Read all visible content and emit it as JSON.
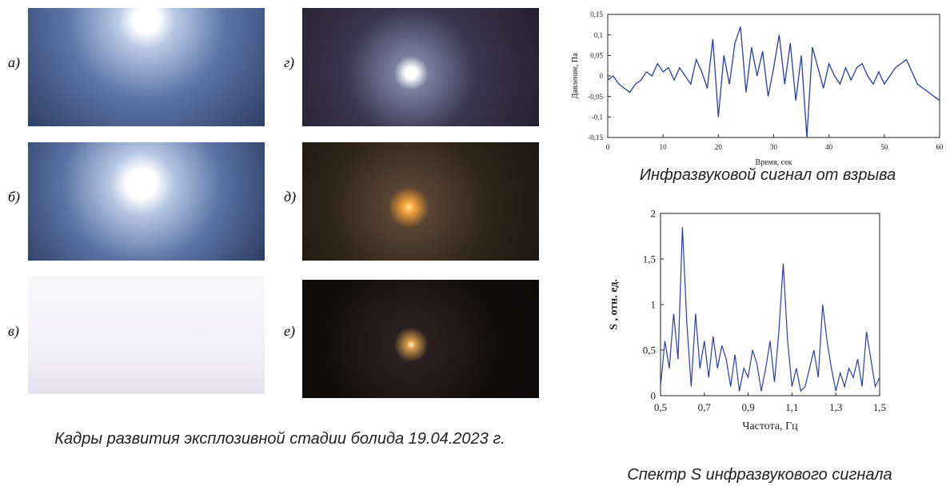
{
  "figure": {
    "panels": [
      {
        "label": "а)"
      },
      {
        "label": "б)"
      },
      {
        "label": "в)"
      },
      {
        "label": "г)"
      },
      {
        "label": "д)"
      },
      {
        "label": "е)"
      }
    ],
    "caption": "Кадры развития эксплозивной стадии болида 19.04.2023 г."
  },
  "chart_data": [
    {
      "type": "line",
      "title": "Инфразвуковой сигнал от взрыва",
      "x_label": "Время, сек",
      "y_label": "Давление, Па",
      "x": [
        0,
        1,
        2,
        3,
        4,
        5,
        6,
        7,
        8,
        9,
        10,
        11,
        12,
        13,
        14,
        15,
        16,
        17,
        18,
        19,
        20,
        21,
        22,
        23,
        24,
        25,
        26,
        27,
        28,
        29,
        30,
        31,
        32,
        33,
        34,
        35,
        36,
        37,
        38,
        39,
        40,
        41,
        42,
        43,
        44,
        45,
        46,
        47,
        48,
        49,
        50,
        51,
        52,
        53,
        54,
        55,
        56,
        57,
        58,
        59,
        60
      ],
      "series": [
        {
          "color": "#2a3f9a",
          "values": [
            -0.01,
            0.0,
            -0.02,
            -0.03,
            -0.04,
            -0.02,
            -0.01,
            0.01,
            0.0,
            0.03,
            0.01,
            0.02,
            -0.01,
            0.02,
            0.0,
            -0.02,
            0.04,
            0.01,
            -0.03,
            0.09,
            -0.1,
            0.05,
            -0.02,
            0.08,
            0.12,
            -0.04,
            0.07,
            0.0,
            0.06,
            -0.05,
            0.02,
            0.1,
            -0.02,
            0.08,
            -0.06,
            0.05,
            -0.15,
            0.07,
            0.02,
            -0.03,
            0.03,
            0.0,
            -0.02,
            0.02,
            -0.01,
            0.02,
            0.03,
            0.0,
            -0.02,
            0.01,
            -0.02,
            0.0,
            0.02,
            0.03,
            0.04,
            0.01,
            -0.02,
            -0.03,
            -0.04,
            -0.05,
            -0.06
          ]
        }
      ],
      "xlim": [
        0,
        60
      ],
      "xticks": [
        0,
        10,
        20,
        30,
        40,
        50,
        60
      ],
      "ylim": [
        -0.15,
        0.15
      ],
      "yticks": [
        {
          "value": -0.15,
          "label": "-0,15"
        },
        {
          "value": -0.1,
          "label": "-0,1"
        },
        {
          "value": -0.05,
          "label": "-0,05"
        },
        0,
        {
          "value": 0.05,
          "label": "0,05"
        },
        {
          "value": 0.1,
          "label": "0,1"
        },
        {
          "value": 0.15,
          "label": "0,15"
        }
      ]
    },
    {
      "type": "line",
      "title": "Спектр S инфразвукового сигнала",
      "x_label": "Частота, Гц",
      "y_label": "S , отн. ед.",
      "x": [
        0.5,
        0.52,
        0.54,
        0.56,
        0.58,
        0.6,
        0.62,
        0.64,
        0.66,
        0.68,
        0.7,
        0.72,
        0.74,
        0.76,
        0.78,
        0.8,
        0.82,
        0.84,
        0.86,
        0.88,
        0.9,
        0.92,
        0.94,
        0.96,
        0.98,
        1.0,
        1.02,
        1.04,
        1.06,
        1.08,
        1.1,
        1.12,
        1.14,
        1.16,
        1.18,
        1.2,
        1.22,
        1.24,
        1.26,
        1.28,
        1.3,
        1.32,
        1.34,
        1.36,
        1.38,
        1.4,
        1.42,
        1.44,
        1.46,
        1.48,
        1.5
      ],
      "series": [
        {
          "color": "#2a3f9a",
          "values": [
            0.1,
            0.6,
            0.3,
            0.9,
            0.4,
            1.85,
            0.8,
            0.1,
            0.9,
            0.3,
            0.6,
            0.2,
            0.65,
            0.3,
            0.55,
            0.4,
            0.1,
            0.45,
            0.05,
            0.3,
            0.2,
            0.5,
            0.35,
            0.05,
            0.3,
            0.6,
            0.15,
            0.7,
            1.45,
            0.6,
            0.1,
            0.3,
            0.05,
            0.1,
            0.3,
            0.5,
            0.2,
            1.0,
            0.6,
            0.3,
            0.05,
            0.25,
            0.1,
            0.3,
            0.2,
            0.4,
            0.1,
            0.7,
            0.4,
            0.1,
            0.2
          ]
        }
      ],
      "xlim": [
        0.5,
        1.5
      ],
      "xticks": [
        {
          "value": 0.5,
          "label": "0,5"
        },
        {
          "value": 0.7,
          "label": "0,7"
        },
        {
          "value": 0.9,
          "label": "0,9"
        },
        {
          "value": 1.1,
          "label": "1,1"
        },
        {
          "value": 1.3,
          "label": "1,3"
        },
        {
          "value": 1.5,
          "label": "1,5"
        }
      ],
      "ylim": [
        0,
        2
      ],
      "yticks": [
        0,
        {
          "value": 0.5,
          "label": "0,5"
        },
        1,
        {
          "value": 1.5,
          "label": "1,5"
        },
        2
      ]
    }
  ]
}
